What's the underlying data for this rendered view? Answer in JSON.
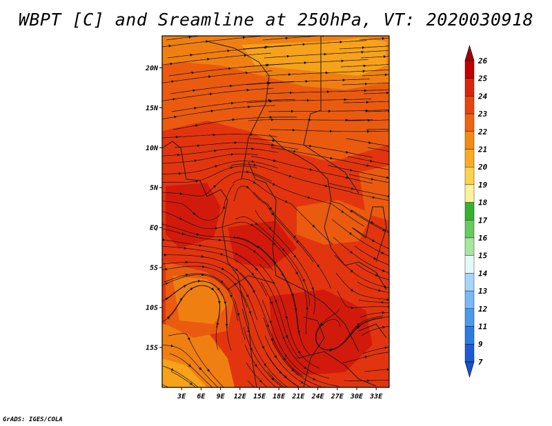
{
  "title": "WBPT [C] and Sreamline at 250hPa, VT: 2020030918",
  "credit": "GrADS: IGES/COLA",
  "map": {
    "type": "filled-contour-with-streamlines",
    "lon_range": [
      0,
      35
    ],
    "lat_range": [
      -20,
      24
    ],
    "lon_ticks": [
      "3E",
      "6E",
      "9E",
      "12E",
      "15E",
      "18E",
      "21E",
      "24E",
      "27E",
      "30E",
      "33E"
    ],
    "lat_ticks": [
      "20N",
      "15N",
      "10N",
      "5N",
      "EQ",
      "5S",
      "10S",
      "15S"
    ],
    "dominant_range_c": "22-25",
    "colors": {
      "c21": "#f6a21a",
      "c22": "#f07f12",
      "c23": "#ea5b10",
      "c24": "#e2350f",
      "c25": "#d21a0c"
    }
  },
  "colorbar": {
    "labels": [
      "26",
      "25",
      "24",
      "23",
      "22",
      "21",
      "20",
      "19",
      "18",
      "17",
      "16",
      "15",
      "14",
      "13",
      "12",
      "11",
      "9",
      "7"
    ],
    "colors": [
      "#c00000",
      "#d8260e",
      "#e64410",
      "#ee6411",
      "#f58a12",
      "#f9ac22",
      "#fcd24e",
      "#fff29e",
      "#38b030",
      "#66cc60",
      "#a6e6a0",
      "#e6f8f8",
      "#a8d4f8",
      "#78b8f4",
      "#4a9ae8",
      "#2c7ce0",
      "#1c5cd0"
    ],
    "top_arrow_color": "#a00000",
    "bottom_arrow_color": "#1850c8"
  }
}
